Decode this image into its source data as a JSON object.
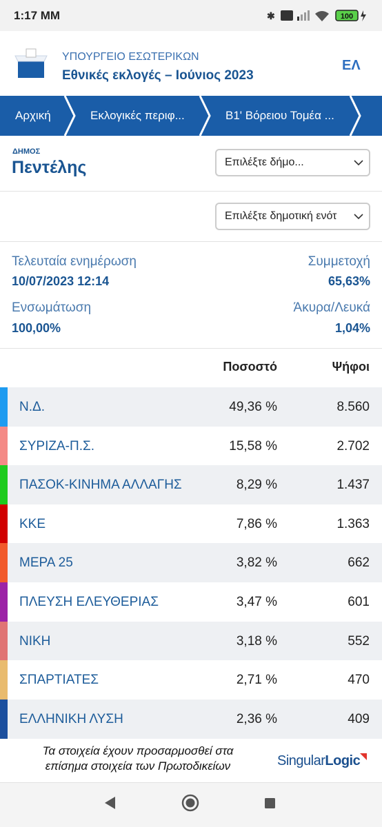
{
  "status_bar": {
    "time": "1:17 MM",
    "battery": "100"
  },
  "header": {
    "ministry": "ΥΠΟΥΡΓΕΙΟ ΕΣΩΤΕΡΙΚΩΝ",
    "title": "Εθνικές εκλογές – Ιούνιος 2023",
    "language": "ΕΛ"
  },
  "breadcrumb": [
    "Αρχική",
    "Εκλογικές περιφ...",
    "Β1' Βόρειου Τομέα ..."
  ],
  "municipality": {
    "label": "ΔΗΜΟΣ",
    "name": "Πεντέλης",
    "select": "Επιλέξτε δήμο...",
    "unit_select": "Επιλέξτε δημοτική ενότ"
  },
  "stats": [
    {
      "label": "Τελευταία ενημέρωση",
      "value": "10/07/2023 12:14"
    },
    {
      "label": "Συμμετοχή",
      "value": "65,63%"
    },
    {
      "label": "Ενσωμάτωση",
      "value": "100,00%"
    },
    {
      "label": "Άκυρα/Λευκά",
      "value": "1,04%"
    }
  ],
  "table": {
    "columns": [
      "Ποσοστό",
      "Ψήφοι"
    ],
    "rows": [
      {
        "party": "Ν.Δ.",
        "color": "#1e9bf0",
        "percent": "49,36 %",
        "votes": "8.560"
      },
      {
        "party": "ΣΥΡΙΖΑ-Π.Σ.",
        "color": "#f48a86",
        "percent": "15,58 %",
        "votes": "2.702"
      },
      {
        "party": "ΠΑΣΟΚ-ΚΙΝΗΜΑ ΑΛΛΑΓΗΣ",
        "color": "#1ecb1e",
        "percent": "8,29 %",
        "votes": "1.437"
      },
      {
        "party": "ΚΚΕ",
        "color": "#d10000",
        "percent": "7,86 %",
        "votes": "1.363"
      },
      {
        "party": "ΜΕΡΑ 25",
        "color": "#f15a2b",
        "percent": "3,82 %",
        "votes": "662"
      },
      {
        "party": "ΠΛΕΥΣΗ ΕΛΕΥΘΕΡΙΑΣ",
        "color": "#9c22a6",
        "percent": "3,47 %",
        "votes": "601"
      },
      {
        "party": "ΝΙΚΗ",
        "color": "#e07474",
        "percent": "3,18 %",
        "votes": "552"
      },
      {
        "party": "ΣΠΑΡΤΙΑΤΕΣ",
        "color": "#e9bb6e",
        "percent": "2,71 %",
        "votes": "470"
      },
      {
        "party": "ΕΛΛΗΝΙΚΗ ΛΥΣΗ",
        "color": "#1b4f9e",
        "percent": "2,36 %",
        "votes": "409"
      }
    ]
  },
  "footer": {
    "note_line_1": "Τα στοιχεία έχουν προσαρμοσθεί στα",
    "note_line_2": "επίσημα στοιχεία των Πρωτοδικείων",
    "brand_1": "Singular",
    "brand_2": "Logic"
  }
}
